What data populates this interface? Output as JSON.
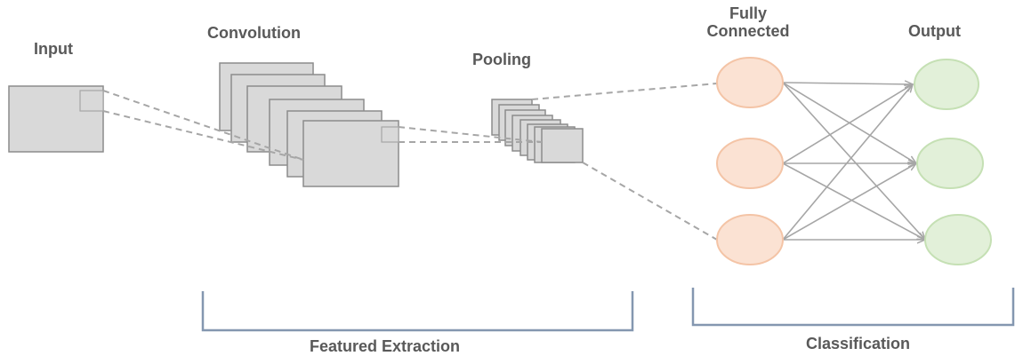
{
  "labels": {
    "input": "Input",
    "convolution": "Convolution",
    "pooling": "Pooling",
    "fully_connected_line1": "Fully",
    "fully_connected_line2": "Connected",
    "output": "Output",
    "featured_extraction": "Featured Extraction",
    "classification": "Classification"
  },
  "colors": {
    "map_fill": "#d9d9d9",
    "map_stroke": "#8c8c8c",
    "dashed_line": "#a6a6a6",
    "fc_node_fill": "#fbe2d3",
    "fc_node_stroke": "#f4c4a6",
    "output_node_fill": "#e2f0d9",
    "output_node_stroke": "#c5e0b4",
    "connection": "#a6a6a6",
    "bracket": "#8497b0",
    "label_text": "#595959"
  }
}
